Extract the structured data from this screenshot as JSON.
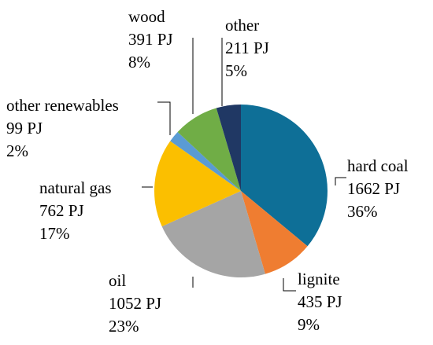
{
  "chart_data": {
    "type": "pie",
    "title": "",
    "unit": "PJ",
    "slices": [
      {
        "label": "hard coal",
        "value": 1662,
        "value_text": "1662 PJ",
        "percent_text": "36%",
        "color": "#0e6f97"
      },
      {
        "label": "lignite",
        "value": 435,
        "value_text": "435 PJ",
        "percent_text": "9%",
        "color": "#ef7d31"
      },
      {
        "label": "oil",
        "value": 1052,
        "value_text": "1052 PJ",
        "percent_text": "23%",
        "color": "#a5a5a5"
      },
      {
        "label": "natural gas",
        "value": 762,
        "value_text": "762 PJ",
        "percent_text": "17%",
        "color": "#fbbf00"
      },
      {
        "label": "other renewables",
        "value": 99,
        "value_text": "99 PJ",
        "percent_text": "2%",
        "color": "#5a9bd4"
      },
      {
        "label": "wood",
        "value": 391,
        "value_text": "391 PJ",
        "percent_text": "8%",
        "color": "#70ad46"
      },
      {
        "label": "other",
        "value": 211,
        "value_text": "211 PJ",
        "percent_text": "5%",
        "color": "#203864"
      }
    ]
  }
}
